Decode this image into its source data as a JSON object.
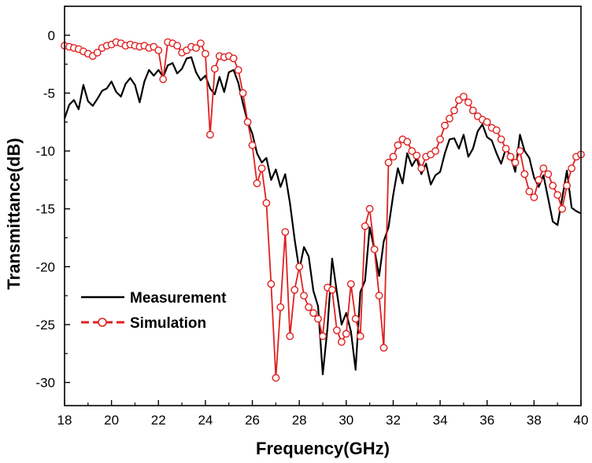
{
  "chart_data": {
    "type": "line",
    "title": "",
    "xlabel": "Frequency(GHz)",
    "ylabel": "Transmittance(dB)",
    "xlim": [
      18,
      40
    ],
    "ylim": [
      -32,
      2.5
    ],
    "x_ticks": [
      "18",
      "20",
      "22",
      "24",
      "26",
      "28",
      "30",
      "32",
      "34",
      "36",
      "38",
      "40"
    ],
    "y_ticks": [
      "0",
      "-5",
      "-10",
      "-15",
      "-20",
      "-25",
      "-30"
    ],
    "grid": false,
    "legend_position": "lower-left",
    "series": [
      {
        "name": "Measurement",
        "color": "#000000",
        "marker": "none",
        "points": [
          [
            18.0,
            -7.2
          ],
          [
            18.2,
            -6.0
          ],
          [
            18.4,
            -5.6
          ],
          [
            18.6,
            -6.4
          ],
          [
            18.8,
            -4.3
          ],
          [
            19.0,
            -5.7
          ],
          [
            19.2,
            -6.1
          ],
          [
            19.4,
            -5.5
          ],
          [
            19.6,
            -4.8
          ],
          [
            19.8,
            -4.6
          ],
          [
            20.0,
            -4.0
          ],
          [
            20.2,
            -4.9
          ],
          [
            20.4,
            -5.3
          ],
          [
            20.6,
            -4.2
          ],
          [
            20.8,
            -3.7
          ],
          [
            21.0,
            -4.3
          ],
          [
            21.2,
            -5.8
          ],
          [
            21.4,
            -4.0
          ],
          [
            21.6,
            -3.0
          ],
          [
            21.8,
            -3.5
          ],
          [
            22.0,
            -3.0
          ],
          [
            22.2,
            -3.6
          ],
          [
            22.4,
            -2.6
          ],
          [
            22.6,
            -2.4
          ],
          [
            22.8,
            -3.3
          ],
          [
            23.0,
            -2.9
          ],
          [
            23.2,
            -2.0
          ],
          [
            23.4,
            -1.9
          ],
          [
            23.6,
            -3.2
          ],
          [
            23.8,
            -3.9
          ],
          [
            24.0,
            -3.5
          ],
          [
            24.2,
            -4.6
          ],
          [
            24.4,
            -5.1
          ],
          [
            24.6,
            -3.6
          ],
          [
            24.8,
            -4.9
          ],
          [
            25.0,
            -3.2
          ],
          [
            25.2,
            -3.0
          ],
          [
            25.4,
            -4.1
          ],
          [
            25.6,
            -5.9
          ],
          [
            25.8,
            -7.5
          ],
          [
            26.0,
            -8.5
          ],
          [
            26.2,
            -10.2
          ],
          [
            26.4,
            -11.0
          ],
          [
            26.6,
            -10.6
          ],
          [
            26.8,
            -12.5
          ],
          [
            27.0,
            -11.6
          ],
          [
            27.2,
            -13.1
          ],
          [
            27.4,
            -12.0
          ],
          [
            27.6,
            -14.5
          ],
          [
            27.8,
            -17.6
          ],
          [
            28.0,
            -20.3
          ],
          [
            28.2,
            -18.3
          ],
          [
            28.4,
            -19.1
          ],
          [
            28.6,
            -22.1
          ],
          [
            28.8,
            -23.4
          ],
          [
            29.0,
            -29.3
          ],
          [
            29.2,
            -25.3
          ],
          [
            29.4,
            -19.3
          ],
          [
            29.6,
            -22.2
          ],
          [
            29.8,
            -25.0
          ],
          [
            30.0,
            -24.0
          ],
          [
            30.2,
            -25.6
          ],
          [
            30.4,
            -28.9
          ],
          [
            30.6,
            -22.2
          ],
          [
            30.8,
            -21.2
          ],
          [
            31.0,
            -16.6
          ],
          [
            31.2,
            -18.5
          ],
          [
            31.4,
            -20.8
          ],
          [
            31.6,
            -17.8
          ],
          [
            31.8,
            -16.6
          ],
          [
            32.0,
            -13.8
          ],
          [
            32.2,
            -11.5
          ],
          [
            32.4,
            -12.8
          ],
          [
            32.6,
            -10.2
          ],
          [
            32.8,
            -11.3
          ],
          [
            33.0,
            -10.6
          ],
          [
            33.2,
            -12.0
          ],
          [
            33.4,
            -11.1
          ],
          [
            33.6,
            -12.9
          ],
          [
            33.8,
            -12.1
          ],
          [
            34.0,
            -11.8
          ],
          [
            34.2,
            -10.2
          ],
          [
            34.4,
            -9.0
          ],
          [
            34.6,
            -8.9
          ],
          [
            34.8,
            -9.8
          ],
          [
            35.0,
            -8.6
          ],
          [
            35.2,
            -10.5
          ],
          [
            35.4,
            -9.8
          ],
          [
            35.6,
            -8.3
          ],
          [
            35.8,
            -7.7
          ],
          [
            36.0,
            -8.8
          ],
          [
            36.2,
            -9.1
          ],
          [
            36.4,
            -10.2
          ],
          [
            36.6,
            -11.1
          ],
          [
            36.8,
            -9.8
          ],
          [
            37.0,
            -10.4
          ],
          [
            37.2,
            -11.8
          ],
          [
            37.4,
            -8.6
          ],
          [
            37.6,
            -10.0
          ],
          [
            37.8,
            -10.6
          ],
          [
            38.0,
            -12.3
          ],
          [
            38.2,
            -13.1
          ],
          [
            38.4,
            -12.1
          ],
          [
            38.6,
            -14.1
          ],
          [
            38.8,
            -16.1
          ],
          [
            39.0,
            -16.4
          ],
          [
            39.2,
            -14.1
          ],
          [
            39.4,
            -11.7
          ],
          [
            39.6,
            -14.9
          ],
          [
            39.8,
            -15.2
          ],
          [
            40.0,
            -15.4
          ]
        ]
      },
      {
        "name": "Simulation",
        "color": "#e02020",
        "marker": "open-circle",
        "points": [
          [
            18.0,
            -0.9
          ],
          [
            18.2,
            -1.0
          ],
          [
            18.4,
            -1.1
          ],
          [
            18.6,
            -1.2
          ],
          [
            18.8,
            -1.4
          ],
          [
            19.0,
            -1.6
          ],
          [
            19.2,
            -1.8
          ],
          [
            19.4,
            -1.5
          ],
          [
            19.6,
            -1.1
          ],
          [
            19.8,
            -0.9
          ],
          [
            20.0,
            -0.8
          ],
          [
            20.2,
            -0.6
          ],
          [
            20.4,
            -0.7
          ],
          [
            20.6,
            -0.9
          ],
          [
            20.8,
            -0.8
          ],
          [
            21.0,
            -0.9
          ],
          [
            21.2,
            -1.0
          ],
          [
            21.4,
            -0.9
          ],
          [
            21.6,
            -1.1
          ],
          [
            21.8,
            -1.0
          ],
          [
            22.0,
            -1.3
          ],
          [
            22.2,
            -3.8
          ],
          [
            22.4,
            -0.6
          ],
          [
            22.6,
            -0.7
          ],
          [
            22.8,
            -0.9
          ],
          [
            23.0,
            -1.5
          ],
          [
            23.2,
            -1.3
          ],
          [
            23.4,
            -1.0
          ],
          [
            23.6,
            -1.1
          ],
          [
            23.8,
            -0.7
          ],
          [
            24.0,
            -1.6
          ],
          [
            24.2,
            -8.6
          ],
          [
            24.4,
            -2.9
          ],
          [
            24.6,
            -1.8
          ],
          [
            24.8,
            -1.9
          ],
          [
            25.0,
            -1.8
          ],
          [
            25.2,
            -2.0
          ],
          [
            25.4,
            -3.0
          ],
          [
            25.6,
            -5.0
          ],
          [
            25.8,
            -7.5
          ],
          [
            26.0,
            -9.5
          ],
          [
            26.2,
            -12.8
          ],
          [
            26.4,
            -11.5
          ],
          [
            26.6,
            -14.5
          ],
          [
            26.8,
            -21.5
          ],
          [
            27.0,
            -29.6
          ],
          [
            27.2,
            -23.5
          ],
          [
            27.4,
            -17.0
          ],
          [
            27.6,
            -26.0
          ],
          [
            27.8,
            -22.0
          ],
          [
            28.0,
            -20.0
          ],
          [
            28.2,
            -22.5
          ],
          [
            28.4,
            -23.5
          ],
          [
            28.6,
            -24.0
          ],
          [
            28.8,
            -24.5
          ],
          [
            29.0,
            -26.0
          ],
          [
            29.2,
            -21.8
          ],
          [
            29.4,
            -22.0
          ],
          [
            29.6,
            -25.5
          ],
          [
            29.8,
            -26.5
          ],
          [
            30.0,
            -25.8
          ],
          [
            30.2,
            -21.5
          ],
          [
            30.4,
            -24.5
          ],
          [
            30.6,
            -26.0
          ],
          [
            30.8,
            -16.5
          ],
          [
            31.0,
            -15.0
          ],
          [
            31.2,
            -18.5
          ],
          [
            31.4,
            -22.5
          ],
          [
            31.6,
            -27.0
          ],
          [
            31.8,
            -11.0
          ],
          [
            32.0,
            -10.5
          ],
          [
            32.2,
            -9.5
          ],
          [
            32.4,
            -9.0
          ],
          [
            32.6,
            -9.2
          ],
          [
            32.8,
            -10.0
          ],
          [
            33.0,
            -10.4
          ],
          [
            33.2,
            -11.5
          ],
          [
            33.4,
            -10.5
          ],
          [
            33.6,
            -10.3
          ],
          [
            33.8,
            -10.0
          ],
          [
            34.0,
            -9.0
          ],
          [
            34.2,
            -7.8
          ],
          [
            34.4,
            -7.2
          ],
          [
            34.6,
            -6.5
          ],
          [
            34.8,
            -5.6
          ],
          [
            35.0,
            -5.3
          ],
          [
            35.2,
            -5.8
          ],
          [
            35.4,
            -6.5
          ],
          [
            35.6,
            -7.0
          ],
          [
            35.8,
            -7.3
          ],
          [
            36.0,
            -7.5
          ],
          [
            36.2,
            -8.0
          ],
          [
            36.4,
            -8.2
          ],
          [
            36.6,
            -9.0
          ],
          [
            36.8,
            -9.8
          ],
          [
            37.0,
            -10.5
          ],
          [
            37.2,
            -11.0
          ],
          [
            37.4,
            -10.0
          ],
          [
            37.6,
            -12.0
          ],
          [
            37.8,
            -13.5
          ],
          [
            38.0,
            -14.0
          ],
          [
            38.2,
            -12.5
          ],
          [
            38.4,
            -11.5
          ],
          [
            38.6,
            -12.0
          ],
          [
            38.8,
            -13.0
          ],
          [
            39.0,
            -13.8
          ],
          [
            39.2,
            -15.0
          ],
          [
            39.4,
            -13.0
          ],
          [
            39.6,
            -11.5
          ],
          [
            39.8,
            -10.5
          ],
          [
            40.0,
            -10.3
          ]
        ]
      }
    ]
  }
}
